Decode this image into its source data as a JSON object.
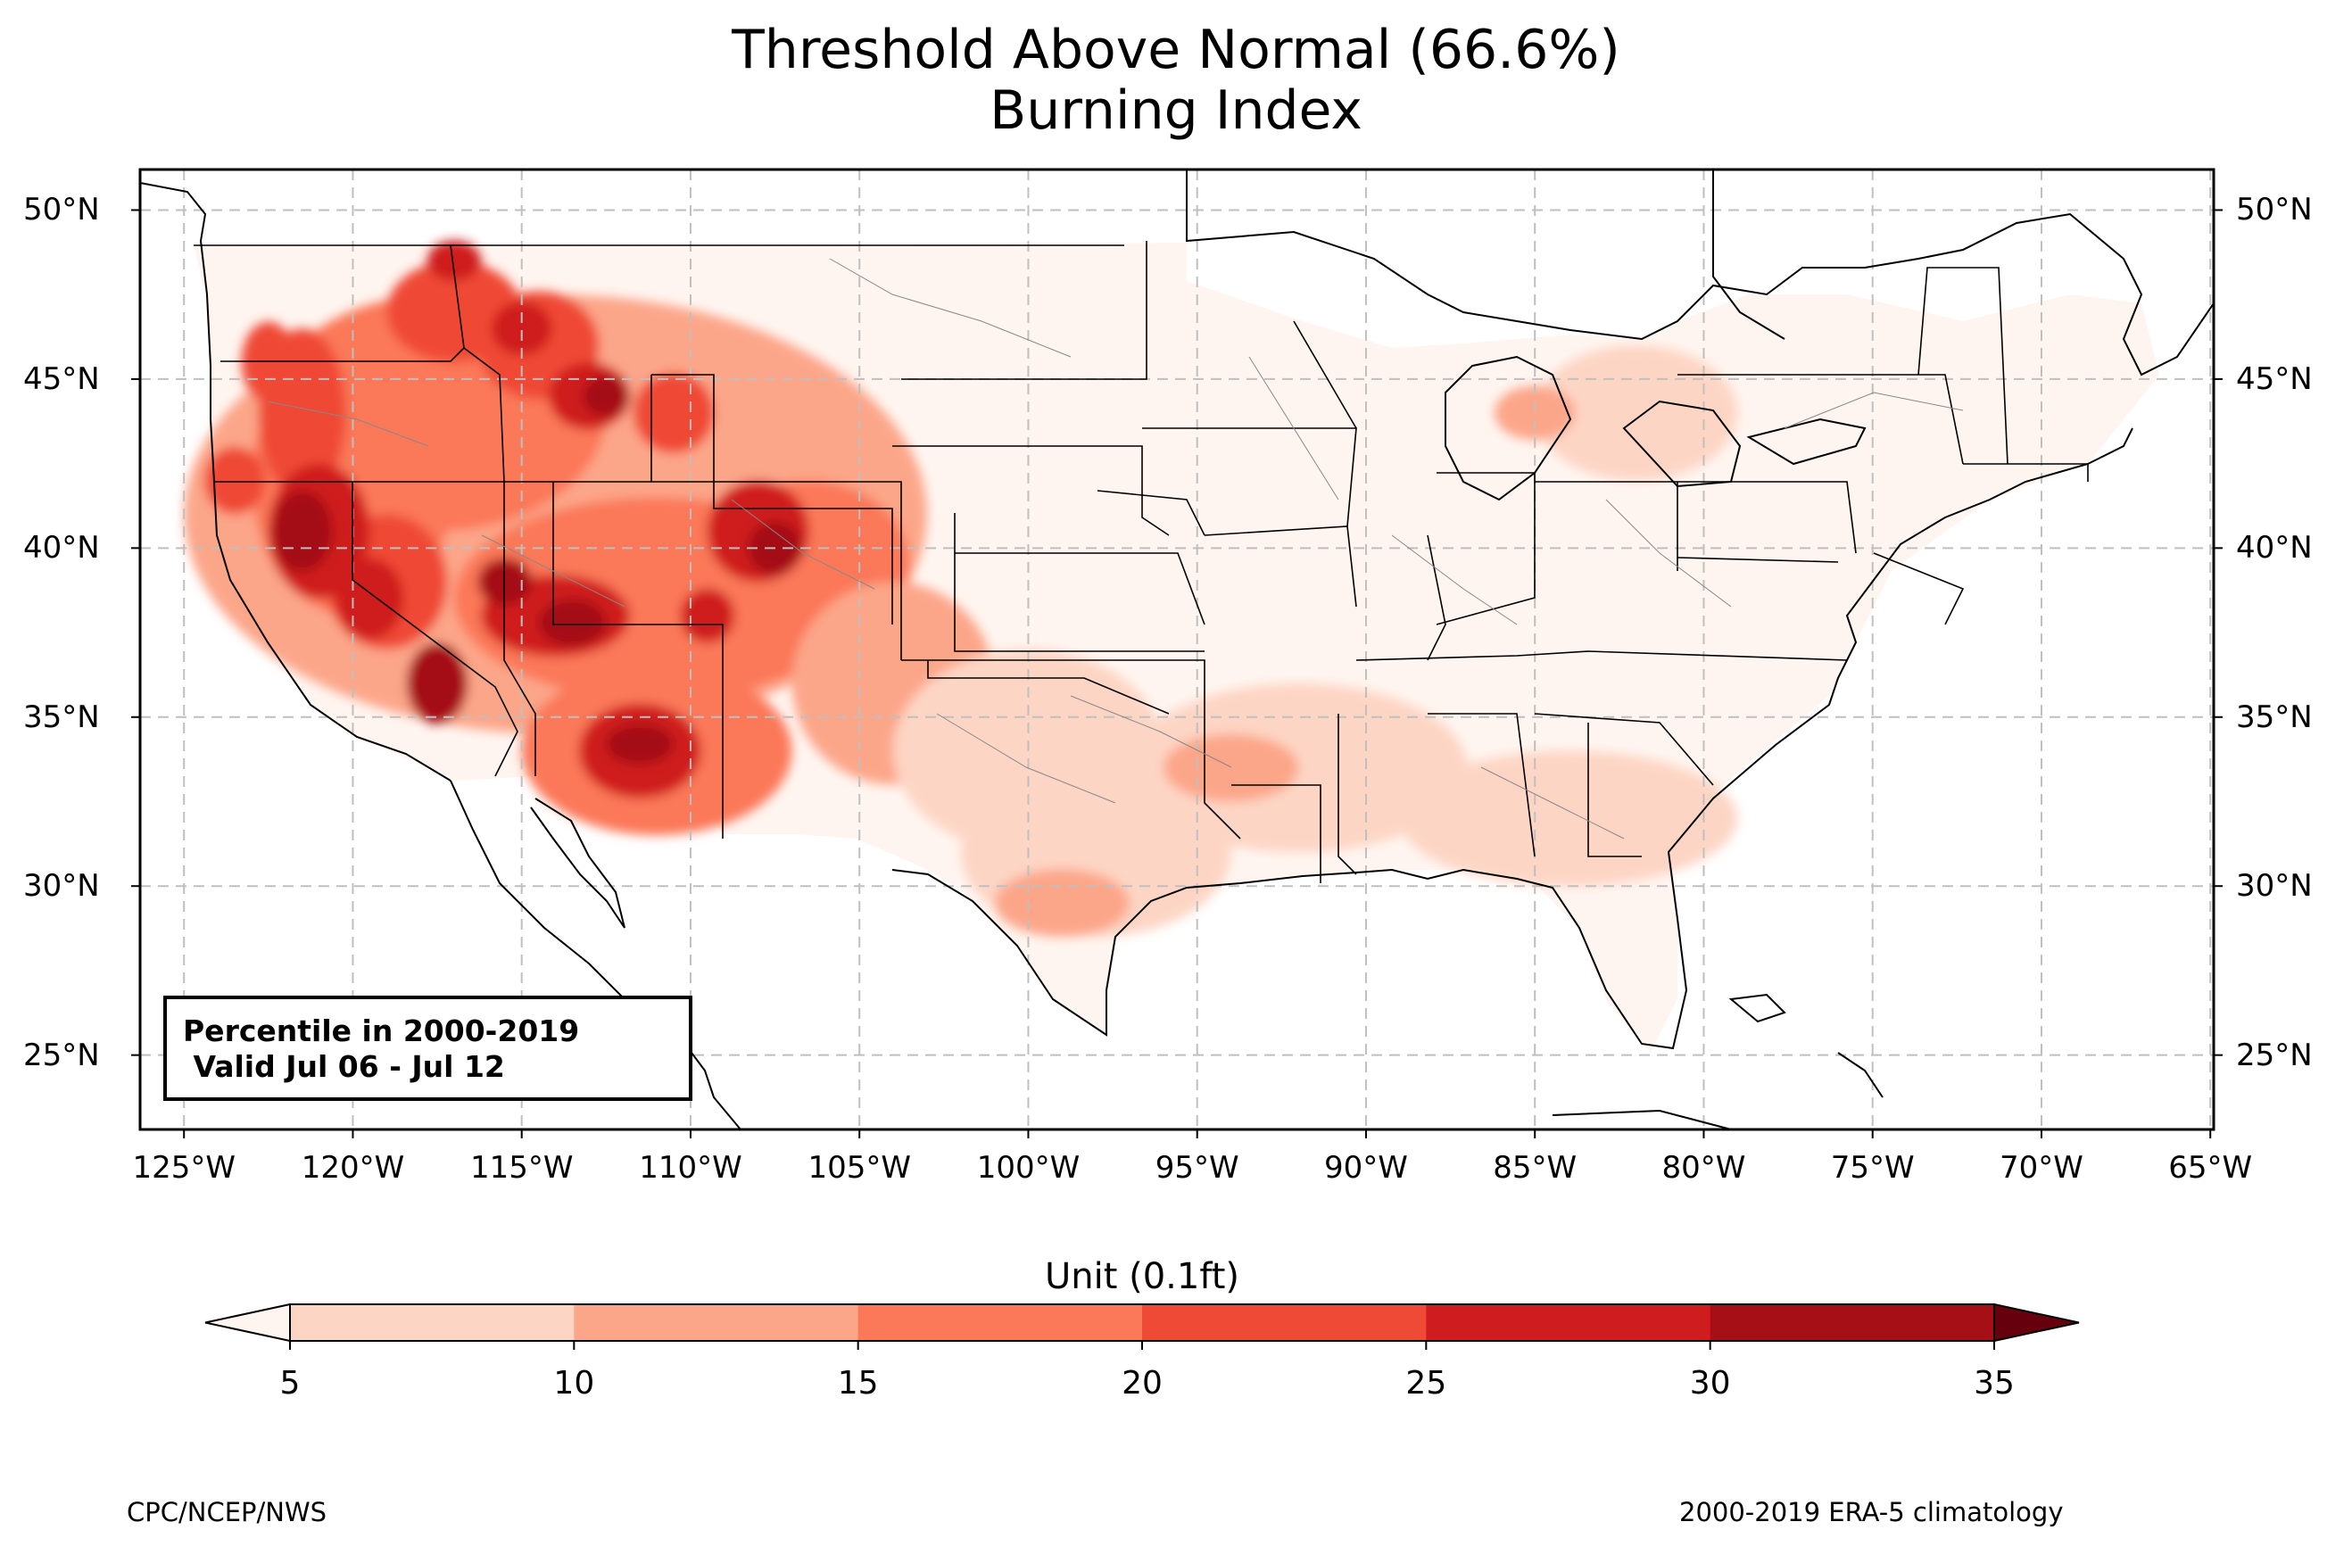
{
  "title": {
    "line1": "Threshold Above Normal (66.6%)",
    "line2": "Burning Index"
  },
  "info_box": {
    "line1": "Percentile in 2000-2019",
    "line2": " Valid Jul 06 - Jul 12"
  },
  "lat_labels": [
    "50°N",
    "45°N",
    "40°N",
    "35°N",
    "30°N",
    "25°N"
  ],
  "lon_labels": [
    "125°W",
    "120°W",
    "115°W",
    "110°W",
    "105°W",
    "100°W",
    "95°W",
    "90°W",
    "85°W",
    "80°W",
    "75°W",
    "70°W",
    "65°W"
  ],
  "colorbar": {
    "label": "Unit (0.1ft)",
    "ticks": [
      "5",
      "10",
      "15",
      "20",
      "25",
      "30",
      "35"
    ],
    "colors": [
      "#fff5f0",
      "#fdd5c4",
      "#fca689",
      "#fb7858",
      "#ef4a36",
      "#cf1d1f",
      "#a50f15",
      "#67000d"
    ]
  },
  "map_extent": {
    "lon_min": -126.3,
    "lon_max": -64.9,
    "lat_min": 22.8,
    "lat_max": 51.2
  },
  "footer": {
    "left": "CPC/NCEP/NWS",
    "right": "2000-2019 ERA-5 climatology"
  }
}
